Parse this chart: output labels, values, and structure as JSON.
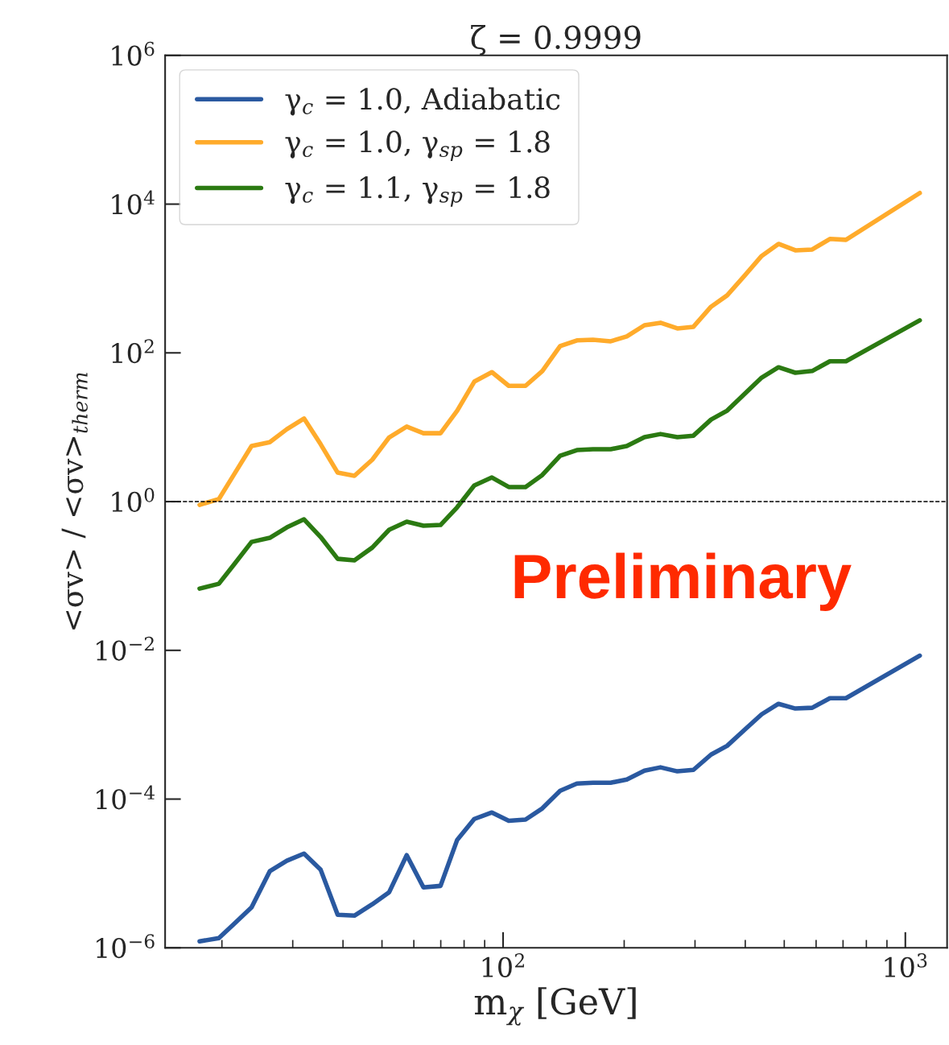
{
  "chart_data": {
    "type": "line",
    "title": "ζ = 0.9999",
    "xlabel": "m$_{χ}$ [GeV]",
    "ylabel": "<σv> / <σv>$_{therm}$",
    "x": [
      17.6,
      19.65,
      21.45,
      23.7,
      26.3,
      29.0,
      32.0,
      35.2,
      38.8,
      42.7,
      47.3,
      52.1,
      57.6,
      63.4,
      69.9,
      76.9,
      84.8,
      93.8,
      103.3,
      113.7,
      125.2,
      138.6,
      152.6,
      167.3,
      185.1,
      203,
      224.6,
      246.2,
      271.2,
      297.3,
      328.9,
      360.6,
      398.9,
      439.3,
      483.8,
      532.8,
      586.7,
      649.2,
      711.8,
      1086
    ],
    "series": [
      {
        "name": "γ$_{c}$ = 1.0, Adiabatic",
        "color": "#2a59a0",
        "values": [
          1.22e-06,
          1.35e-06,
          2.1e-06,
          3.5e-06,
          1.07e-05,
          1.48e-05,
          1.85e-05,
          1.12e-05,
          2.78e-06,
          2.71e-06,
          3.85e-06,
          5.6e-06,
          1.76e-05,
          6.5e-06,
          6.8e-06,
          2.83e-05,
          5.4e-05,
          6.6e-05,
          5.1e-05,
          5.3e-05,
          7.5e-05,
          0.000129,
          0.000162,
          0.000166,
          0.000166,
          0.000183,
          0.000241,
          0.000267,
          0.000236,
          0.000247,
          0.000397,
          0.00052,
          0.00086,
          0.00138,
          0.00191,
          0.00165,
          0.00169,
          0.00227,
          0.00227,
          0.0085
        ]
      },
      {
        "name": "γ$_{c}$ = 1.0, γ$_{sp}$ = 1.8",
        "color": "#ffab2b",
        "values": [
          0.905,
          1.08,
          2.33,
          5.6,
          6.3,
          9.4,
          13.1,
          5.9,
          2.45,
          2.22,
          3.66,
          7.3,
          10.2,
          8.3,
          8.3,
          16.7,
          41,
          55,
          36,
          36,
          57,
          123,
          147,
          150,
          143,
          166,
          235,
          254,
          213,
          224,
          418,
          593,
          1100,
          2010,
          2920,
          2390,
          2450,
          3400,
          3310,
          14100
        ]
      },
      {
        "name": "γ$_{c}$ = 1.1, γ$_{sp}$ = 1.8",
        "color": "#2b7a12",
        "values": [
          0.0676,
          0.0785,
          0.143,
          0.287,
          0.326,
          0.45,
          0.578,
          0.334,
          0.17,
          0.162,
          0.241,
          0.418,
          0.536,
          0.473,
          0.485,
          0.84,
          1.65,
          2.11,
          1.57,
          1.57,
          2.28,
          4.14,
          4.93,
          5.06,
          5.06,
          5.58,
          7.35,
          8.1,
          7.35,
          7.7,
          12.7,
          16.7,
          28.3,
          46.5,
          64,
          54,
          57,
          77,
          77,
          274
        ]
      }
    ],
    "log": "xy",
    "xlim": [
      14.45,
      1270
    ],
    "ylim": [
      1e-06,
      1000000.0
    ],
    "xticks": [
      {
        "value": 100,
        "label": "10$^{2}$"
      },
      {
        "value": 1000,
        "label": "10$^{3}$"
      }
    ],
    "yticks": [
      {
        "value": 1e-06,
        "label": "10$^{−6}$"
      },
      {
        "value": 0.0001,
        "label": "10$^{−4}$"
      },
      {
        "value": 0.01,
        "label": "10$^{−2}$"
      },
      {
        "value": 1,
        "label": "10$^{0}$"
      },
      {
        "value": 100,
        "label": "10$^{2}$"
      },
      {
        "value": 10000,
        "label": "10$^{4}$"
      },
      {
        "value": 1000000,
        "label": "10$^{6}$"
      }
    ],
    "ref_lines": [
      {
        "axis": "y",
        "value": 1,
        "color": "#000000",
        "line_style": "dashed"
      }
    ],
    "annotations": [
      "Preliminary"
    ],
    "legend": "top left",
    "grid": false,
    "line_style": "solid",
    "marker": "none"
  }
}
